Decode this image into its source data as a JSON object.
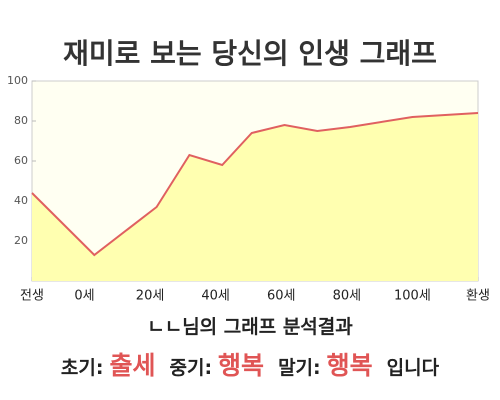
{
  "chart_data": {
    "type": "area",
    "title": "재미로 보는 당신의 인생 그래프",
    "x": [
      -16,
      3,
      22,
      32,
      42,
      51,
      61,
      71,
      81,
      100,
      120
    ],
    "values": [
      44,
      13,
      37,
      63,
      58,
      74,
      78,
      75,
      77,
      82,
      84
    ],
    "xlim": [
      -16,
      120
    ],
    "ylim": [
      0,
      100
    ],
    "xticks": [
      {
        "value": -16,
        "label": "전생"
      },
      {
        "value": 0,
        "label": "0세"
      },
      {
        "value": 20,
        "label": "20세"
      },
      {
        "value": 40,
        "label": "40세"
      },
      {
        "value": 60,
        "label": "60세"
      },
      {
        "value": 80,
        "label": "80세"
      },
      {
        "value": 100,
        "label": "100세"
      },
      {
        "value": 120,
        "label": "환생"
      }
    ],
    "yticks": [
      20,
      40,
      60,
      80,
      100
    ],
    "color": "#e06060",
    "fill_color": "#ffffb0",
    "background": "#fffff2"
  },
  "analysis": {
    "heading": "ㄴㄴ님의 그래프 분석결과",
    "items": [
      {
        "label": "초기:",
        "value": "출세"
      },
      {
        "label": "중기:",
        "value": "행복"
      },
      {
        "label": "말기:",
        "value": "행복"
      }
    ],
    "ending": "입니다"
  }
}
